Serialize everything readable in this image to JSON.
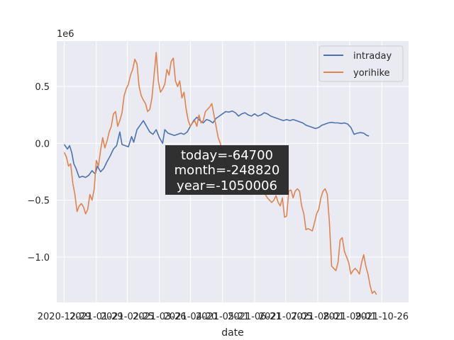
{
  "chart_data": {
    "type": "line",
    "title": "",
    "xlabel": "date",
    "ylabel": "",
    "y_offset_text": "1e6",
    "ylim": [
      -1400000,
      900000
    ],
    "xlim": [
      "2020-12-11",
      "2021-11-05"
    ],
    "grid": true,
    "legend_position": "upper-right",
    "x_tick_labels": [
      "2020-12-29",
      "2021-01-29",
      "2021-02-25",
      "2021-03-26",
      "2021-04-20",
      "2021-05-21",
      "2021-06-21",
      "2021-07-05",
      "2021-08-01",
      "2021-09-01",
      "2021-10-26"
    ],
    "x_tick_dates": [
      "2020-12-18",
      "2021-01-17",
      "2021-02-15",
      "2021-03-17",
      "2021-04-15",
      "2021-05-15",
      "2021-06-14",
      "2021-07-13",
      "2021-08-12",
      "2021-09-11",
      "2021-10-11",
      "2021-11-10"
    ],
    "y_ticks": [
      -1000000,
      -500000,
      0,
      500000
    ],
    "y_tick_labels": [
      "−1.0",
      "−0.5",
      "0.0",
      "0.5"
    ],
    "series": [
      {
        "name": "intraday",
        "color": "#4c72b0",
        "points": [
          [
            "2020-12-18",
            -10000
          ],
          [
            "2020-12-21",
            -50000
          ],
          [
            "2020-12-23",
            -20000
          ],
          [
            "2020-12-25",
            -80000
          ],
          [
            "2020-12-27",
            -180000
          ],
          [
            "2020-12-29",
            -220000
          ],
          [
            "2021-01-01",
            -300000
          ],
          [
            "2021-01-04",
            -290000
          ],
          [
            "2021-01-07",
            -300000
          ],
          [
            "2021-01-10",
            -280000
          ],
          [
            "2021-01-13",
            -240000
          ],
          [
            "2021-01-16",
            -270000
          ],
          [
            "2021-01-18",
            -200000
          ],
          [
            "2021-01-21",
            -250000
          ],
          [
            "2021-01-24",
            -220000
          ],
          [
            "2021-01-27",
            -160000
          ],
          [
            "2021-01-30",
            -110000
          ],
          [
            "2021-02-02",
            -50000
          ],
          [
            "2021-02-05",
            -20000
          ],
          [
            "2021-02-08",
            100000
          ],
          [
            "2021-02-10",
            -10000
          ],
          [
            "2021-02-13",
            -20000
          ],
          [
            "2021-02-16",
            -30000
          ],
          [
            "2021-02-19",
            60000
          ],
          [
            "2021-02-21",
            10000
          ],
          [
            "2021-02-24",
            120000
          ],
          [
            "2021-02-27",
            160000
          ],
          [
            "2021-03-02",
            200000
          ],
          [
            "2021-03-05",
            150000
          ],
          [
            "2021-03-08",
            100000
          ],
          [
            "2021-03-11",
            80000
          ],
          [
            "2021-03-14",
            120000
          ],
          [
            "2021-03-17",
            50000
          ],
          [
            "2021-03-20",
            0
          ],
          [
            "2021-03-22",
            120000
          ],
          [
            "2021-03-25",
            90000
          ],
          [
            "2021-03-28",
            80000
          ],
          [
            "2021-03-31",
            70000
          ],
          [
            "2021-04-03",
            80000
          ],
          [
            "2021-04-06",
            90000
          ],
          [
            "2021-04-09",
            80000
          ],
          [
            "2021-04-12",
            100000
          ],
          [
            "2021-04-15",
            150000
          ],
          [
            "2021-04-18",
            200000
          ],
          [
            "2021-04-21",
            230000
          ],
          [
            "2021-04-24",
            200000
          ],
          [
            "2021-04-27",
            180000
          ],
          [
            "2021-04-30",
            210000
          ],
          [
            "2021-05-03",
            200000
          ],
          [
            "2021-05-06",
            180000
          ],
          [
            "2021-05-09",
            220000
          ],
          [
            "2021-05-12",
            240000
          ],
          [
            "2021-05-15",
            260000
          ],
          [
            "2021-05-18",
            280000
          ],
          [
            "2021-05-21",
            275000
          ],
          [
            "2021-05-24",
            285000
          ],
          [
            "2021-05-27",
            270000
          ],
          [
            "2021-05-30",
            240000
          ],
          [
            "2021-06-02",
            260000
          ],
          [
            "2021-06-05",
            270000
          ],
          [
            "2021-06-08",
            250000
          ],
          [
            "2021-06-11",
            240000
          ],
          [
            "2021-06-14",
            260000
          ],
          [
            "2021-06-17",
            240000
          ],
          [
            "2021-06-20",
            250000
          ],
          [
            "2021-06-23",
            270000
          ],
          [
            "2021-06-26",
            260000
          ],
          [
            "2021-06-29",
            240000
          ],
          [
            "2021-07-02",
            230000
          ],
          [
            "2021-07-05",
            220000
          ],
          [
            "2021-07-08",
            210000
          ],
          [
            "2021-07-11",
            200000
          ],
          [
            "2021-07-14",
            210000
          ],
          [
            "2021-07-17",
            200000
          ],
          [
            "2021-07-20",
            210000
          ],
          [
            "2021-07-23",
            200000
          ],
          [
            "2021-07-26",
            190000
          ],
          [
            "2021-07-29",
            180000
          ],
          [
            "2021-08-01",
            160000
          ],
          [
            "2021-08-04",
            150000
          ],
          [
            "2021-08-07",
            140000
          ],
          [
            "2021-08-10",
            130000
          ],
          [
            "2021-08-13",
            140000
          ],
          [
            "2021-08-16",
            160000
          ],
          [
            "2021-08-19",
            170000
          ],
          [
            "2021-08-22",
            180000
          ],
          [
            "2021-08-25",
            185000
          ],
          [
            "2021-08-28",
            180000
          ],
          [
            "2021-08-31",
            180000
          ],
          [
            "2021-09-03",
            175000
          ],
          [
            "2021-09-06",
            180000
          ],
          [
            "2021-09-09",
            170000
          ],
          [
            "2021-09-12",
            140000
          ],
          [
            "2021-09-15",
            80000
          ],
          [
            "2021-09-18",
            90000
          ],
          [
            "2021-09-21",
            95000
          ],
          [
            "2021-09-24",
            90000
          ],
          [
            "2021-09-27",
            70000
          ],
          [
            "2021-09-29",
            65000
          ]
        ]
      },
      {
        "name": "yorihike",
        "color": "#dd8452",
        "points": [
          [
            "2020-12-18",
            -80000
          ],
          [
            "2020-12-20",
            -120000
          ],
          [
            "2020-12-22",
            -200000
          ],
          [
            "2020-12-24",
            -180000
          ],
          [
            "2020-12-26",
            -350000
          ],
          [
            "2020-12-28",
            -450000
          ],
          [
            "2020-12-30",
            -600000
          ],
          [
            "2021-01-01",
            -550000
          ],
          [
            "2021-01-03",
            -530000
          ],
          [
            "2021-01-05",
            -560000
          ],
          [
            "2021-01-07",
            -620000
          ],
          [
            "2021-01-09",
            -580000
          ],
          [
            "2021-01-11",
            -450000
          ],
          [
            "2021-01-13",
            -500000
          ],
          [
            "2021-01-15",
            -400000
          ],
          [
            "2021-01-17",
            -150000
          ],
          [
            "2021-01-19",
            -200000
          ],
          [
            "2021-01-21",
            -60000
          ],
          [
            "2021-01-23",
            50000
          ],
          [
            "2021-01-25",
            -40000
          ],
          [
            "2021-01-27",
            20000
          ],
          [
            "2021-01-29",
            100000
          ],
          [
            "2021-01-31",
            150000
          ],
          [
            "2021-02-02",
            260000
          ],
          [
            "2021-02-04",
            280000
          ],
          [
            "2021-02-06",
            150000
          ],
          [
            "2021-02-08",
            200000
          ],
          [
            "2021-02-10",
            270000
          ],
          [
            "2021-02-12",
            420000
          ],
          [
            "2021-02-14",
            480000
          ],
          [
            "2021-02-16",
            520000
          ],
          [
            "2021-02-18",
            600000
          ],
          [
            "2021-02-20",
            650000
          ],
          [
            "2021-02-22",
            740000
          ],
          [
            "2021-02-24",
            700000
          ],
          [
            "2021-02-26",
            500000
          ],
          [
            "2021-02-28",
            420000
          ],
          [
            "2021-03-02",
            380000
          ],
          [
            "2021-03-04",
            350000
          ],
          [
            "2021-03-06",
            280000
          ],
          [
            "2021-03-08",
            300000
          ],
          [
            "2021-03-10",
            400000
          ],
          [
            "2021-03-12",
            600000
          ],
          [
            "2021-03-14",
            800000
          ],
          [
            "2021-03-16",
            550000
          ],
          [
            "2021-03-18",
            450000
          ],
          [
            "2021-03-20",
            480000
          ],
          [
            "2021-03-22",
            520000
          ],
          [
            "2021-03-24",
            650000
          ],
          [
            "2021-03-26",
            600000
          ],
          [
            "2021-03-28",
            720000
          ],
          [
            "2021-03-30",
            750000
          ],
          [
            "2021-04-01",
            550000
          ],
          [
            "2021-04-03",
            500000
          ],
          [
            "2021-04-05",
            550000
          ],
          [
            "2021-04-07",
            400000
          ],
          [
            "2021-04-09",
            450000
          ],
          [
            "2021-04-11",
            300000
          ],
          [
            "2021-04-13",
            200000
          ],
          [
            "2021-04-15",
            150000
          ],
          [
            "2021-04-17",
            180000
          ],
          [
            "2021-04-19",
            200000
          ],
          [
            "2021-04-21",
            150000
          ],
          [
            "2021-04-23",
            250000
          ],
          [
            "2021-04-25",
            180000
          ],
          [
            "2021-04-27",
            200000
          ],
          [
            "2021-04-29",
            280000
          ],
          [
            "2021-05-01",
            300000
          ],
          [
            "2021-05-03",
            320000
          ],
          [
            "2021-05-05",
            350000
          ],
          [
            "2021-05-07",
            250000
          ],
          [
            "2021-05-09",
            150000
          ],
          [
            "2021-05-11",
            50000
          ],
          [
            "2021-05-13",
            0
          ],
          [
            "2021-05-15",
            -100000
          ],
          [
            "2021-05-17",
            -150000
          ],
          [
            "2021-05-19",
            -200000
          ],
          [
            "2021-05-21",
            -220000
          ],
          [
            "2021-05-23",
            -260000
          ],
          [
            "2021-05-25",
            -220000
          ],
          [
            "2021-05-27",
            -250000
          ],
          [
            "2021-05-29",
            -280000
          ],
          [
            "2021-05-31",
            -300000
          ],
          [
            "2021-06-02",
            -260000
          ],
          [
            "2021-06-04",
            -230000
          ],
          [
            "2021-06-06",
            -250000
          ],
          [
            "2021-06-08",
            -280000
          ],
          [
            "2021-06-10",
            -300000
          ],
          [
            "2021-06-12",
            -290000
          ],
          [
            "2021-06-14",
            -320000
          ],
          [
            "2021-06-16",
            -350000
          ],
          [
            "2021-06-18",
            -380000
          ],
          [
            "2021-06-20",
            -400000
          ],
          [
            "2021-06-22",
            -420000
          ],
          [
            "2021-06-24",
            -450000
          ],
          [
            "2021-06-26",
            -480000
          ],
          [
            "2021-06-28",
            -500000
          ],
          [
            "2021-06-30",
            -520000
          ],
          [
            "2021-07-02",
            -500000
          ],
          [
            "2021-07-04",
            -460000
          ],
          [
            "2021-07-06",
            -520000
          ],
          [
            "2021-07-08",
            -550000
          ],
          [
            "2021-07-10",
            -480000
          ],
          [
            "2021-07-12",
            -650000
          ],
          [
            "2021-07-14",
            -640000
          ],
          [
            "2021-07-16",
            -420000
          ],
          [
            "2021-07-18",
            -410000
          ],
          [
            "2021-07-20",
            -480000
          ],
          [
            "2021-07-22",
            -420000
          ],
          [
            "2021-07-24",
            -400000
          ],
          [
            "2021-07-26",
            -420000
          ],
          [
            "2021-07-28",
            -550000
          ],
          [
            "2021-07-30",
            -620000
          ],
          [
            "2021-08-01",
            -760000
          ],
          [
            "2021-08-03",
            -750000
          ],
          [
            "2021-08-05",
            -760000
          ],
          [
            "2021-08-07",
            -770000
          ],
          [
            "2021-08-09",
            -700000
          ],
          [
            "2021-08-11",
            -620000
          ],
          [
            "2021-08-13",
            -580000
          ],
          [
            "2021-08-15",
            -480000
          ],
          [
            "2021-08-17",
            -420000
          ],
          [
            "2021-08-19",
            -400000
          ],
          [
            "2021-08-21",
            -450000
          ],
          [
            "2021-08-23",
            -700000
          ],
          [
            "2021-08-25",
            -1080000
          ],
          [
            "2021-08-27",
            -1100000
          ],
          [
            "2021-08-29",
            -1120000
          ],
          [
            "2021-08-31",
            -1050000
          ],
          [
            "2021-09-02",
            -850000
          ],
          [
            "2021-09-04",
            -830000
          ],
          [
            "2021-09-06",
            -950000
          ],
          [
            "2021-09-08",
            -1000000
          ],
          [
            "2021-09-10",
            -1050000
          ],
          [
            "2021-09-12",
            -1150000
          ],
          [
            "2021-09-14",
            -1120000
          ],
          [
            "2021-09-16",
            -1100000
          ],
          [
            "2021-09-18",
            -1120000
          ],
          [
            "2021-09-20",
            -1150000
          ],
          [
            "2021-09-22",
            -1050000
          ],
          [
            "2021-09-24",
            -980000
          ],
          [
            "2021-09-26",
            -1080000
          ],
          [
            "2021-09-28",
            -1150000
          ],
          [
            "2021-09-30",
            -1250000
          ],
          [
            "2021-10-02",
            -1320000
          ],
          [
            "2021-10-04",
            -1300000
          ],
          [
            "2021-10-06",
            -1330000
          ]
        ]
      }
    ],
    "annotation": {
      "lines": [
        "today=-64700",
        "month=-248820",
        "year=-1050006"
      ]
    }
  }
}
